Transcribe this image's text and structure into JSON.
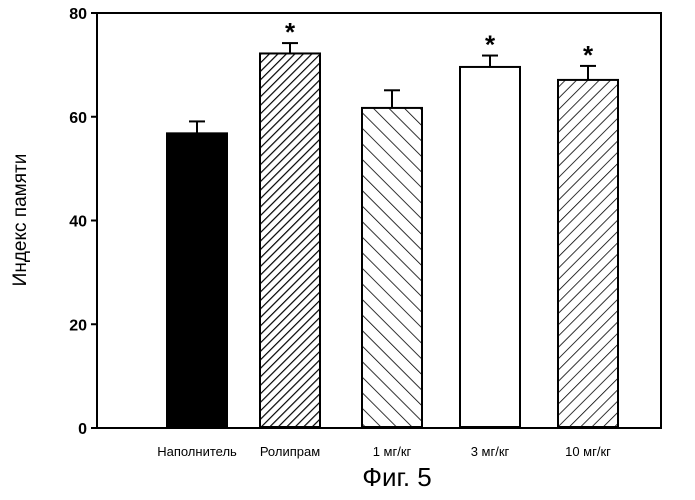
{
  "chart_data": {
    "type": "bar",
    "title": "",
    "xlabel": "",
    "ylabel": "Индекс памяти",
    "ylim": [
      0,
      80
    ],
    "yticks": [
      "0",
      "20",
      "40",
      "60",
      "80"
    ],
    "grid": false,
    "categories": [
      "Наполнитель",
      "Ролипрам",
      "1 мг/кг",
      "3 мг/кг",
      "10 мг/кг"
    ],
    "values": [
      56.8,
      72.2,
      61.7,
      69.6,
      67.1
    ],
    "errors": [
      2.3,
      2.0,
      3.4,
      2.2,
      2.7
    ],
    "significance": [
      "",
      "*",
      "",
      "*",
      "*"
    ],
    "fills": [
      "solid-black",
      "dense-diagonal-up",
      "diagonal-down",
      "white",
      "diagonal-up"
    ],
    "caption": "Фиг. 5"
  }
}
